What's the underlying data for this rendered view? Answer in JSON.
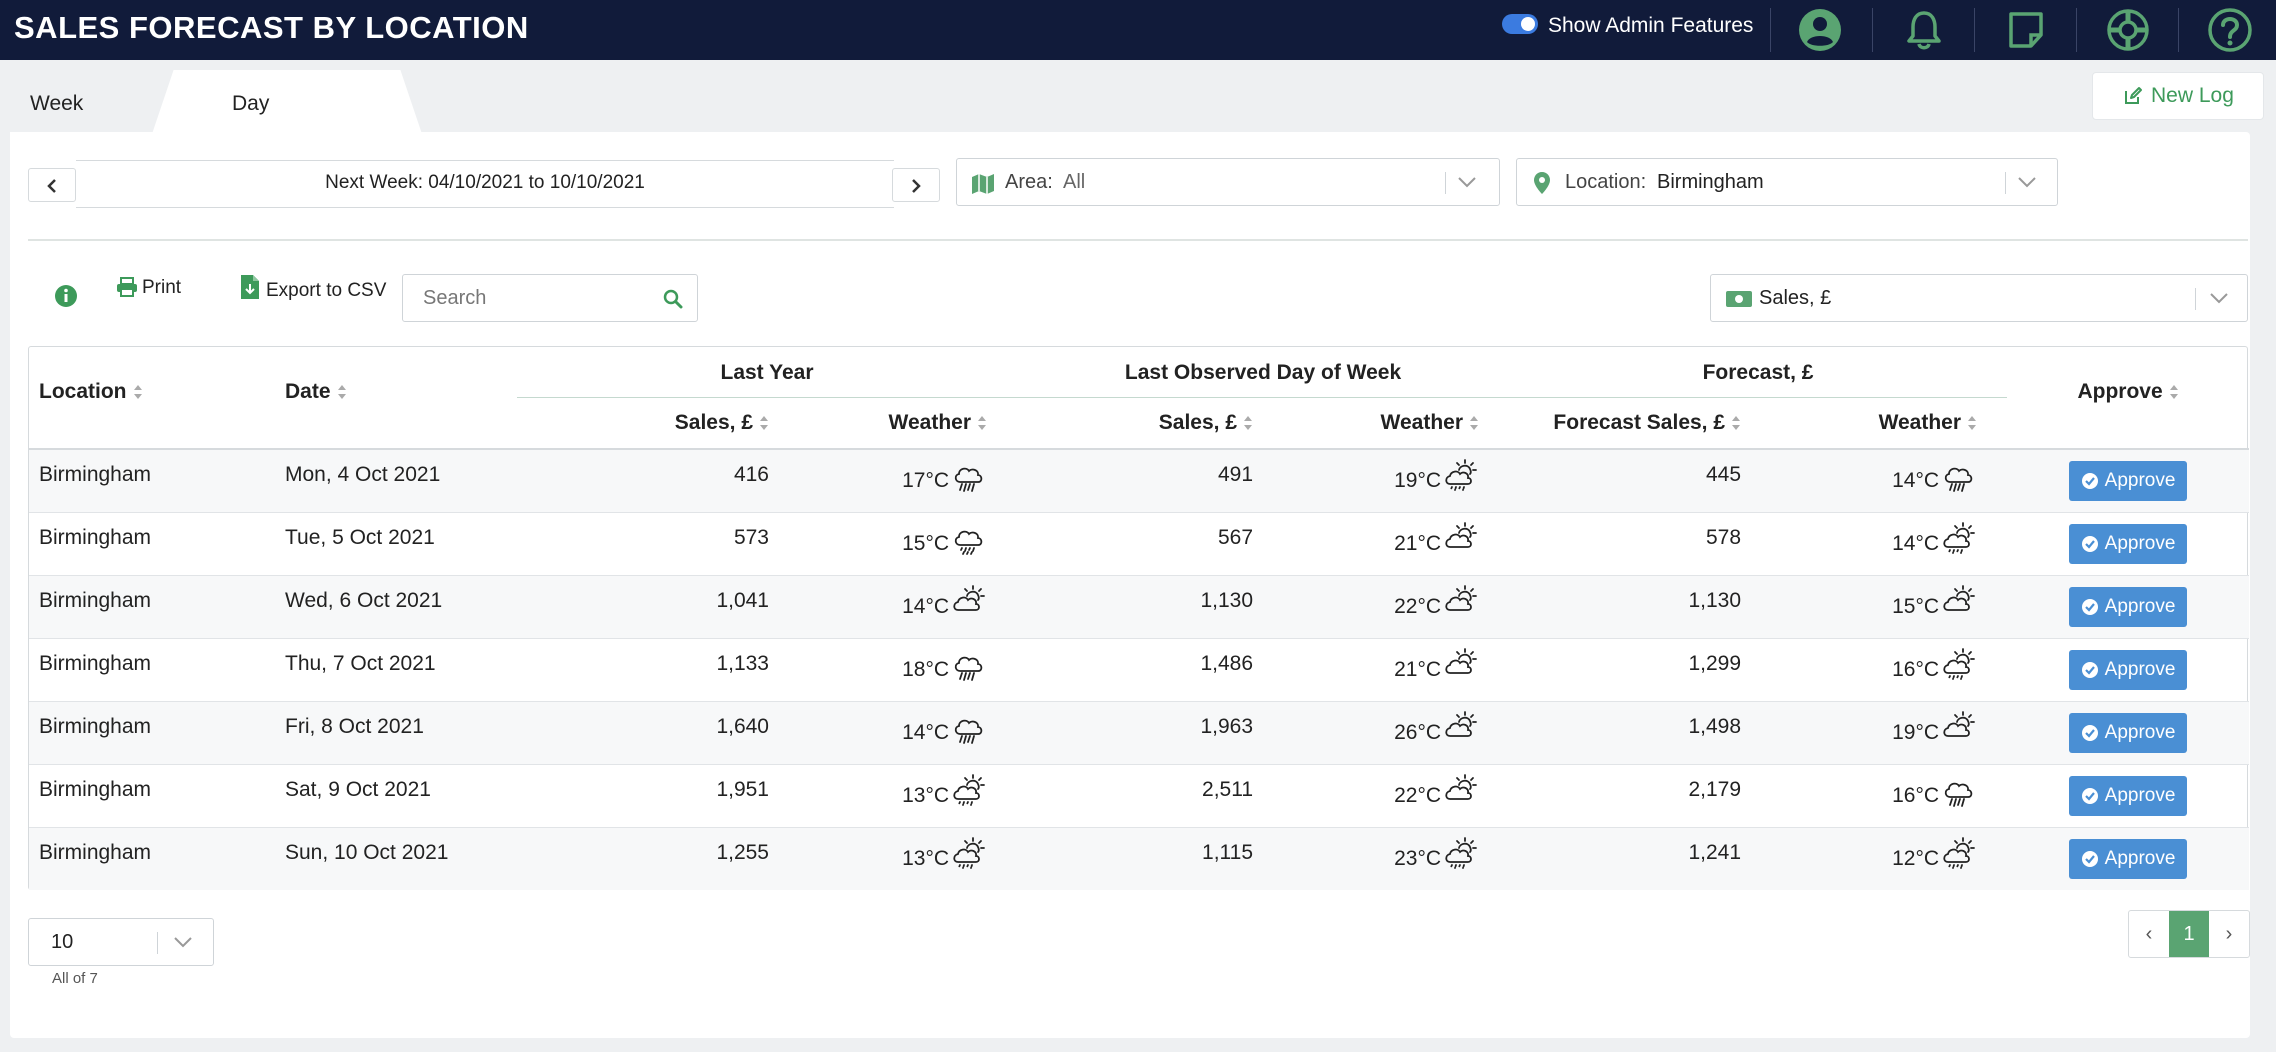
{
  "header": {
    "title": "SALES FORECAST BY LOCATION",
    "admin_toggle_label": "Show Admin Features",
    "admin_toggle_on": true,
    "icons": [
      "user-icon",
      "bell-icon",
      "notes-icon",
      "support-icon",
      "help-icon"
    ],
    "background": "#111b3a",
    "accent": "#5aa472"
  },
  "tabs": [
    {
      "label": "Week",
      "active": false
    },
    {
      "label": "Day",
      "active": true
    }
  ],
  "new_log_label": "New Log",
  "week_nav": {
    "range_label": "Next Week: 04/10/2021 to 10/10/2021"
  },
  "filters": {
    "area": {
      "label": "Area:",
      "value": "All"
    },
    "location": {
      "label": "Location:",
      "value": "Birmingham"
    },
    "metric": {
      "value": "Sales, £"
    }
  },
  "toolbar": {
    "print_label": "Print",
    "export_label": "Export to CSV",
    "search_placeholder": "Search"
  },
  "table": {
    "groups": {
      "last_year": "Last Year",
      "last_observed": "Last Observed Day of Week",
      "forecast": "Forecast, £"
    },
    "columns": {
      "location": "Location",
      "date": "Date",
      "ly_sales": "Sales, £",
      "ly_weather": "Weather",
      "lo_sales": "Sales, £",
      "lo_weather": "Weather",
      "fc_sales": "Forecast Sales, £",
      "fc_weather": "Weather",
      "approve": "Approve"
    },
    "approve_label": "Approve",
    "rows": [
      {
        "location": "Birmingham",
        "date": "Mon, 4 Oct 2021",
        "ly_sales": "416",
        "ly_temp": "17°C",
        "ly_icon": "rain",
        "lo_sales": "491",
        "lo_temp": "19°C",
        "lo_icon": "sun-cloud-drizzle",
        "fc_sales": "445",
        "fc_temp": "14°C",
        "fc_icon": "rain"
      },
      {
        "location": "Birmingham",
        "date": "Tue, 5 Oct 2021",
        "ly_sales": "573",
        "ly_temp": "15°C",
        "ly_icon": "drizzle",
        "lo_sales": "567",
        "lo_temp": "21°C",
        "lo_icon": "sun-cloud",
        "fc_sales": "578",
        "fc_temp": "14°C",
        "fc_icon": "sun-cloud-drizzle"
      },
      {
        "location": "Birmingham",
        "date": "Wed, 6 Oct 2021",
        "ly_sales": "1,041",
        "ly_temp": "14°C",
        "ly_icon": "sun-cloud",
        "lo_sales": "1,130",
        "lo_temp": "22°C",
        "lo_icon": "sun-cloud",
        "fc_sales": "1,130",
        "fc_temp": "15°C",
        "fc_icon": "sun-cloud"
      },
      {
        "location": "Birmingham",
        "date": "Thu, 7 Oct 2021",
        "ly_sales": "1,133",
        "ly_temp": "18°C",
        "ly_icon": "rain",
        "lo_sales": "1,486",
        "lo_temp": "21°C",
        "lo_icon": "sun-cloud",
        "fc_sales": "1,299",
        "fc_temp": "16°C",
        "fc_icon": "sun-cloud-drizzle"
      },
      {
        "location": "Birmingham",
        "date": "Fri, 8 Oct 2021",
        "ly_sales": "1,640",
        "ly_temp": "14°C",
        "ly_icon": "rain",
        "lo_sales": "1,963",
        "lo_temp": "26°C",
        "lo_icon": "sun-cloud",
        "fc_sales": "1,498",
        "fc_temp": "19°C",
        "fc_icon": "sun-cloud"
      },
      {
        "location": "Birmingham",
        "date": "Sat, 9 Oct 2021",
        "ly_sales": "1,951",
        "ly_temp": "13°C",
        "ly_icon": "sun-cloud-drizzle",
        "lo_sales": "2,511",
        "lo_temp": "22°C",
        "lo_icon": "sun-cloud",
        "fc_sales": "2,179",
        "fc_temp": "16°C",
        "fc_icon": "rain"
      },
      {
        "location": "Birmingham",
        "date": "Sun, 10 Oct 2021",
        "ly_sales": "1,255",
        "ly_temp": "13°C",
        "ly_icon": "sun-cloud-drizzle",
        "lo_sales": "1,115",
        "lo_temp": "23°C",
        "lo_icon": "sun-cloud-drizzle",
        "fc_sales": "1,241",
        "fc_temp": "12°C",
        "fc_icon": "sun-cloud-drizzle"
      }
    ]
  },
  "footer": {
    "page_size": "10",
    "count_label": "All of 7",
    "prev": "‹",
    "current_page": "1",
    "next": "›"
  }
}
